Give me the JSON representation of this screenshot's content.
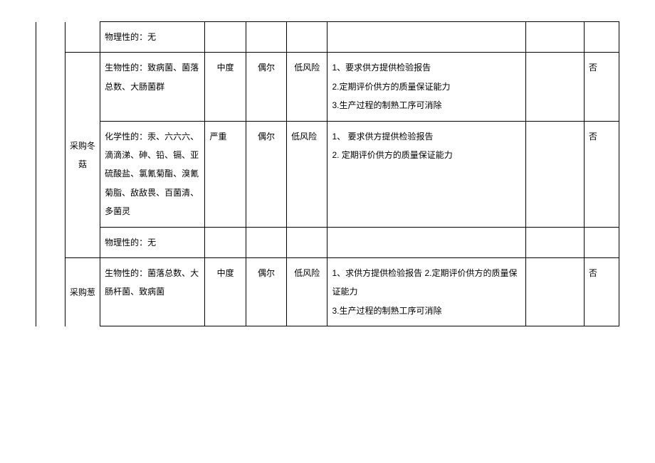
{
  "table": {
    "background_color": "#ffffff",
    "border_color": "#000000",
    "font_size": 12,
    "line_height": 2.2,
    "columns": [
      {
        "width_pct": 5
      },
      {
        "width_pct": 6,
        "align": "center"
      },
      {
        "width_pct": 18
      },
      {
        "width_pct": 7,
        "align": "center"
      },
      {
        "width_pct": 7,
        "align": "center"
      },
      {
        "width_pct": 7,
        "align": "center"
      },
      {
        "width_pct": 34
      },
      {
        "width_pct": 10
      },
      {
        "width_pct": 6
      }
    ],
    "rows": {
      "r1": {
        "hazard": "物理性的：无"
      },
      "r2": {
        "category": "采购冬菇",
        "hazard": "生物性的：致病菌、菌落总数、大肠菌群",
        "severity": "中度",
        "likelihood": "偶尔",
        "risk": "低风险",
        "measures": "1、要求供方提供检验报告\n2.定期评价供方的质量保证能力\n3.生产过程的制熟工序可消除",
        "ccp": "否"
      },
      "r3": {
        "hazard": "化学性的：汞、六六六、滴滴涕、砷、铅、镉、亚硫酸盐、氯氰菊酯、溴氰菊脂、敌敌畏、百菌清、多菌灵",
        "severity": "严重",
        "likelihood": "偶尔",
        "risk": "低风险",
        "measures": "1、 要求供方提供检验报告\n2.  定期评价供方的质量保证能力",
        "ccp": "否"
      },
      "r4": {
        "hazard": "物理性的：无"
      },
      "r5": {
        "category": "采购葱",
        "hazard": "生物性的：菌落总数、大肠杆菌、致病菌",
        "severity": "中度",
        "likelihood": "偶尔",
        "risk": "低风险",
        "measures": "1、求供方提供检验报告 2.定期评价供方的质量保证能力\n3.生产过程的制熟工序可消除",
        "ccp": "否"
      }
    }
  }
}
